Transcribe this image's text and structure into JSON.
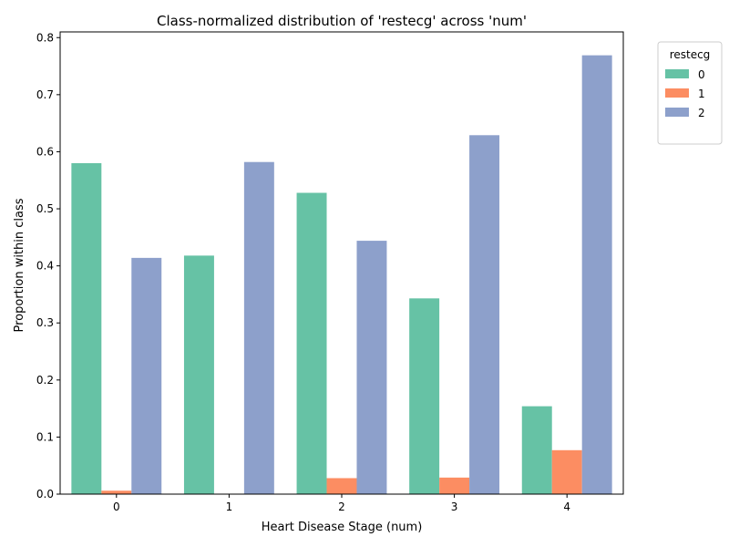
{
  "chart_data": {
    "type": "bar",
    "title": "Class-normalized distribution of 'restecg' across 'num'",
    "xlabel": "Heart Disease Stage (num)",
    "ylabel": "Proportion within class",
    "categories": [
      "0",
      "1",
      "2",
      "3",
      "4"
    ],
    "ylim": [
      0,
      0.81
    ],
    "yticks": [
      0.0,
      0.1,
      0.2,
      0.3,
      0.4,
      0.5,
      0.6,
      0.7,
      0.8
    ],
    "grid": false,
    "legend": {
      "title": "restecg",
      "placement": "outside-top-right"
    },
    "series": [
      {
        "name": "0",
        "color": "#66c2a5",
        "values": [
          0.58,
          0.418,
          0.528,
          0.343,
          0.154
        ]
      },
      {
        "name": "1",
        "color": "#fc8d62",
        "values": [
          0.006,
          0.0,
          0.028,
          0.029,
          0.077
        ]
      },
      {
        "name": "2",
        "color": "#8da0cb",
        "values": [
          0.414,
          0.582,
          0.444,
          0.629,
          0.769
        ]
      }
    ]
  }
}
